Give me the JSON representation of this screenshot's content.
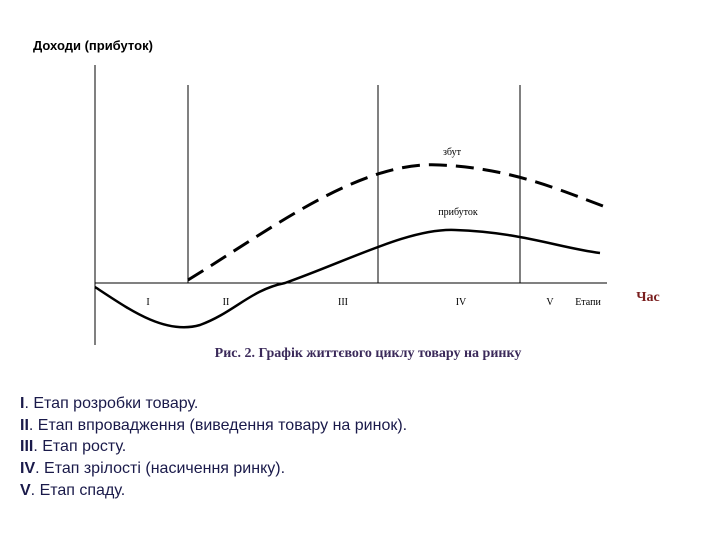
{
  "header": {
    "title": "Доходи (прибуток)"
  },
  "diagram": {
    "x_axis_label": "Час",
    "sales_label": "збут",
    "profit_label": "прибуток",
    "stages": [
      "I",
      "II",
      "III",
      "IV",
      "V"
    ],
    "stages_label": "Етапи",
    "caption": "Рис. 2. Графік життєвого циклу товару на ринку"
  },
  "list": [
    {
      "num": "I",
      "text": ". Етап розробки товару."
    },
    {
      "num": "II",
      "text": ". Етап впровадження (виведення товару на ринок)."
    },
    {
      "num": "III",
      "text": ". Етап росту."
    },
    {
      "num": "IV",
      "text": ". Етап зрілості (насичення ринку)."
    },
    {
      "num": "V",
      "text": ". Етап спаду."
    }
  ]
}
